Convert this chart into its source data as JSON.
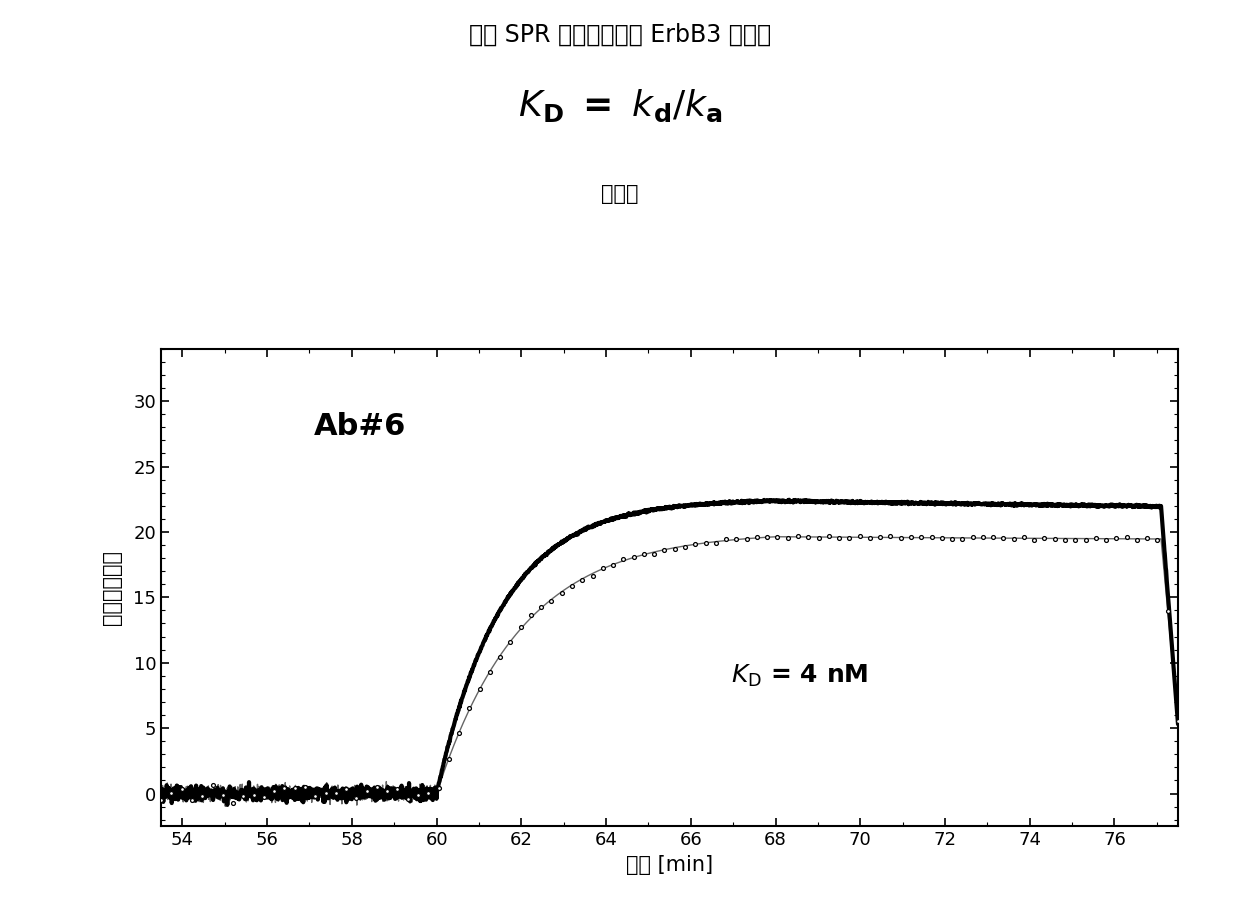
{
  "title": "通过 SPR 测量的抵体与 ErbB3 的结合",
  "sub_subtitle": "亲和力",
  "xlabel": "时间 [min]",
  "ylabel": "共振改变单元",
  "xlim": [
    53.5,
    77.5
  ],
  "ylim": [
    -2.5,
    34
  ],
  "xticks": [
    54,
    56,
    58,
    60,
    62,
    64,
    66,
    68,
    70,
    72,
    74,
    76
  ],
  "yticks": [
    0,
    5,
    10,
    15,
    20,
    25,
    30
  ],
  "annotation1": "Ab#6",
  "bg_color": "#ffffff",
  "line_color": "#000000",
  "association_start": 60.0,
  "association_end": 68.0,
  "dissociation_end": 77.2,
  "plateau1": 22.5,
  "plateau2": 20.0,
  "final1": 21.0,
  "final2": 19.0,
  "drop1": 17.8,
  "drop2": 16.0,
  "ka1": 0.65,
  "ka2": 0.5,
  "kd1": 0.04,
  "kd2": 0.035,
  "noise_amp": 0.25,
  "noise_amp2": 0.3
}
